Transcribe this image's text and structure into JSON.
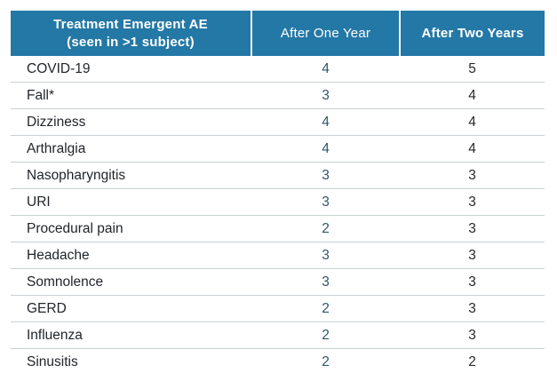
{
  "chart_data": {
    "type": "table",
    "title": "Treatment Emergent AE (seen in >1 subject)",
    "columns": [
      "Treatment Emergent AE (seen in >1 subject)",
      "After One Year",
      "After Two Years"
    ],
    "rows": [
      [
        "COVID-19",
        4,
        5
      ],
      [
        "Fall*",
        3,
        4
      ],
      [
        "Dizziness",
        4,
        4
      ],
      [
        "Arthralgia",
        4,
        4
      ],
      [
        "Nasopharyngitis",
        3,
        3
      ],
      [
        "URI",
        3,
        3
      ],
      [
        "Procedural pain",
        2,
        3
      ],
      [
        "Headache",
        3,
        3
      ],
      [
        "Somnolence",
        3,
        3
      ],
      [
        "GERD",
        2,
        3
      ],
      [
        "Influenza",
        2,
        3
      ],
      [
        "Sinusitis",
        2,
        2
      ]
    ]
  },
  "header": {
    "col1_line1": "Treatment Emergent AE",
    "col1_line2": "(seen in >1 subject)",
    "col2": "After One Year",
    "col3": "After Two Years"
  },
  "colors": {
    "page_bg": "#FFFFFF",
    "header_bg": "#2478A6",
    "header_text": "#FFFFFF",
    "header_divider": "#FFFFFF",
    "label_text": "#212529",
    "year1_text": "#2E566C",
    "year2_text": "#26292C",
    "row_divider": "#C9CFD3"
  }
}
